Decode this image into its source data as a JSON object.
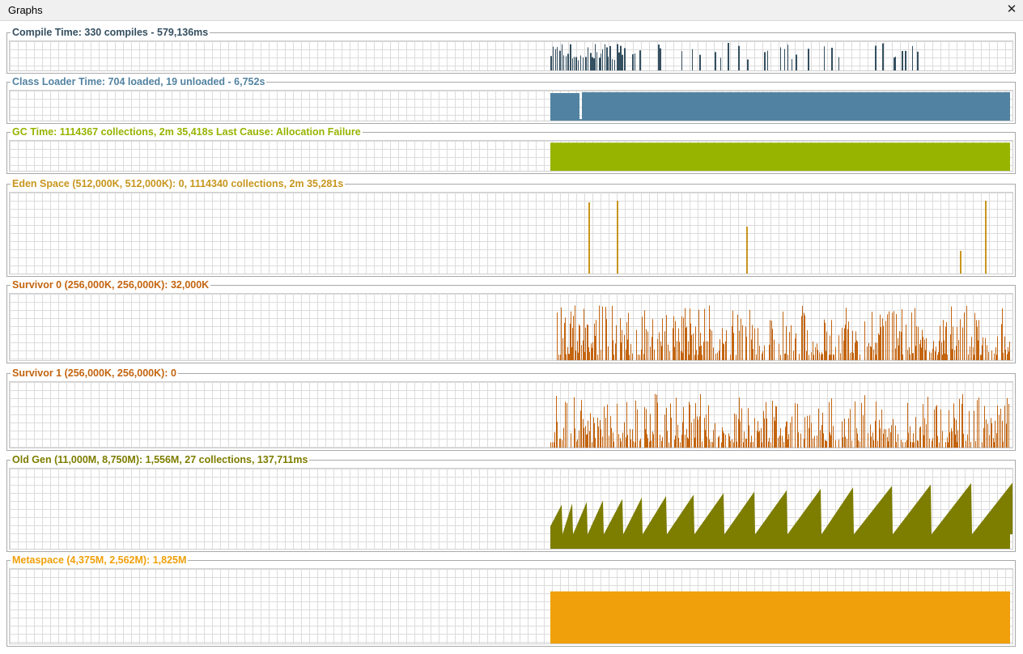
{
  "window": {
    "title": "Graphs",
    "close_icon": "close-icon"
  },
  "graphs": [
    {
      "id": "compile-time",
      "label": "Compile Time: 330 compiles - 579,136ms",
      "color": "#344f60"
    },
    {
      "id": "class-loader-time",
      "label": "Class Loader Time: 704 loaded, 19 unloaded - 6,752s",
      "color": "#5282a1"
    },
    {
      "id": "gc-time",
      "label": "GC Time: 1114367 collections, 2m 35,418s  Last Cause: Allocation Failure",
      "color": "#96b400"
    },
    {
      "id": "eden-space",
      "label": "Eden Space (512,000K, 512,000K): 0, 1114340 collections, 2m 35,281s",
      "color": "#c8961e"
    },
    {
      "id": "survivor-0",
      "label": "Survivor 0 (256,000K, 256,000K): 32,000K",
      "color": "#c3640f"
    },
    {
      "id": "survivor-1",
      "label": "Survivor 1 (256,000K, 256,000K): 0",
      "color": "#c3640f"
    },
    {
      "id": "old-gen",
      "label": "Old Gen (11,000M, 8,750M): 1,556M, 27 collections, 137,711ms",
      "color": "#7d7d00"
    },
    {
      "id": "metaspace",
      "label": "Metaspace (4,375M, 2,562M): 1,825M",
      "color": "#f0a00a"
    }
  ]
}
